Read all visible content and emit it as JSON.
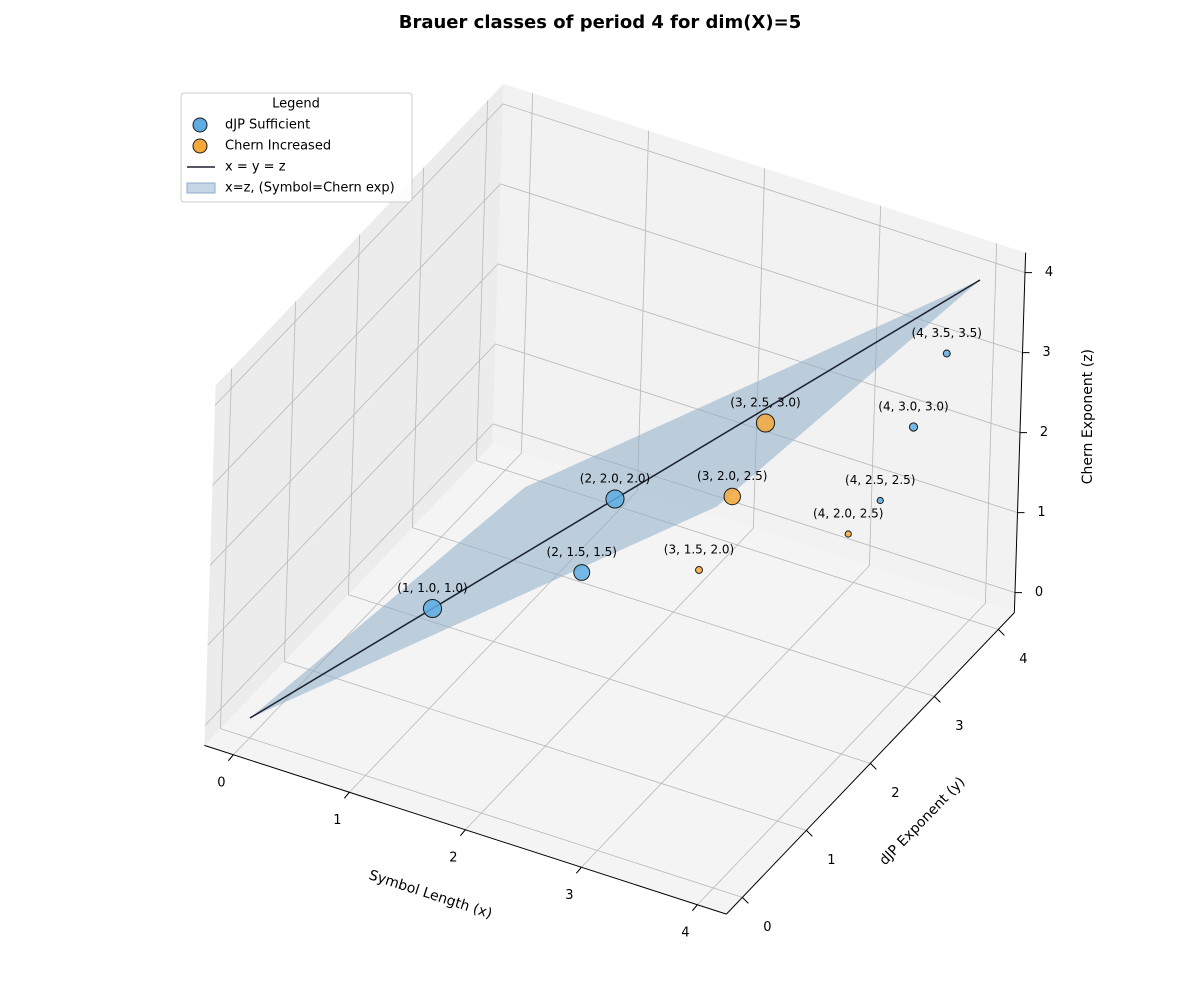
{
  "chart_data": {
    "type": "scatter3d",
    "title": "Brauer classes of period 4 for dim(X)=5",
    "xlabel": "Symbol Length (x)",
    "ylabel": "dJP Exponent (y)",
    "zlabel": "Chern Exponent (z)",
    "xlim": [
      0,
      4
    ],
    "ylim": [
      0,
      4
    ],
    "zlim": [
      0,
      4
    ],
    "xticks": [
      0,
      1,
      2,
      3,
      4
    ],
    "yticks": [
      0,
      1,
      2,
      3,
      4
    ],
    "zticks": [
      0,
      1,
      2,
      3,
      4
    ],
    "grid": true,
    "legend_title": "Legend",
    "legend_loc": "upper left",
    "series": [
      {
        "name": "dJP Sufficient",
        "color": "#5dade2",
        "edgecolor": "#1a1a1a",
        "x": [
          1,
          2,
          2,
          4,
          4,
          4
        ],
        "y": [
          1.0,
          1.5,
          2.0,
          2.5,
          3.0,
          3.5
        ],
        "z": [
          1.0,
          1.5,
          2.0,
          2.5,
          3.0,
          3.5
        ],
        "sizes": [
          170,
          130,
          170,
          20,
          35,
          25
        ],
        "labels": [
          "(1, 1.0, 1.0)",
          "(2, 1.5, 1.5)",
          "(2, 2.0, 2.0)",
          "(4, 2.5, 2.5)",
          "(4, 3.0, 3.0)",
          "(4, 3.5, 3.5)"
        ]
      },
      {
        "name": "Chern Increased",
        "color": "#f5a83a",
        "edgecolor": "#1a1a1a",
        "x": [
          3,
          3,
          3,
          4
        ],
        "y": [
          1.5,
          2.0,
          2.5,
          2.0
        ],
        "z": [
          2.0,
          2.5,
          3.0,
          2.5
        ],
        "sizes": [
          25,
          140,
          170,
          20
        ],
        "labels": [
          "(3, 1.5, 2.0)",
          "(3, 2.0, 2.5)",
          "(3, 2.5, 3.0)",
          "(4, 2.0, 2.5)"
        ]
      }
    ],
    "lines": [
      {
        "name": "x = y = z",
        "color": "#1b1f2e",
        "x": [
          0,
          4
        ],
        "y": [
          0,
          4
        ],
        "z": [
          0,
          4
        ]
      }
    ],
    "surfaces": [
      {
        "name": "x=z, (Symbol=Chern exp)",
        "color": "#8eadc9",
        "x": [
          0,
          0.7,
          4,
          3.4
        ],
        "y": [
          0,
          3,
          4,
          1
        ],
        "z": [
          0,
          0.7,
          4,
          3.4
        ]
      }
    ]
  }
}
